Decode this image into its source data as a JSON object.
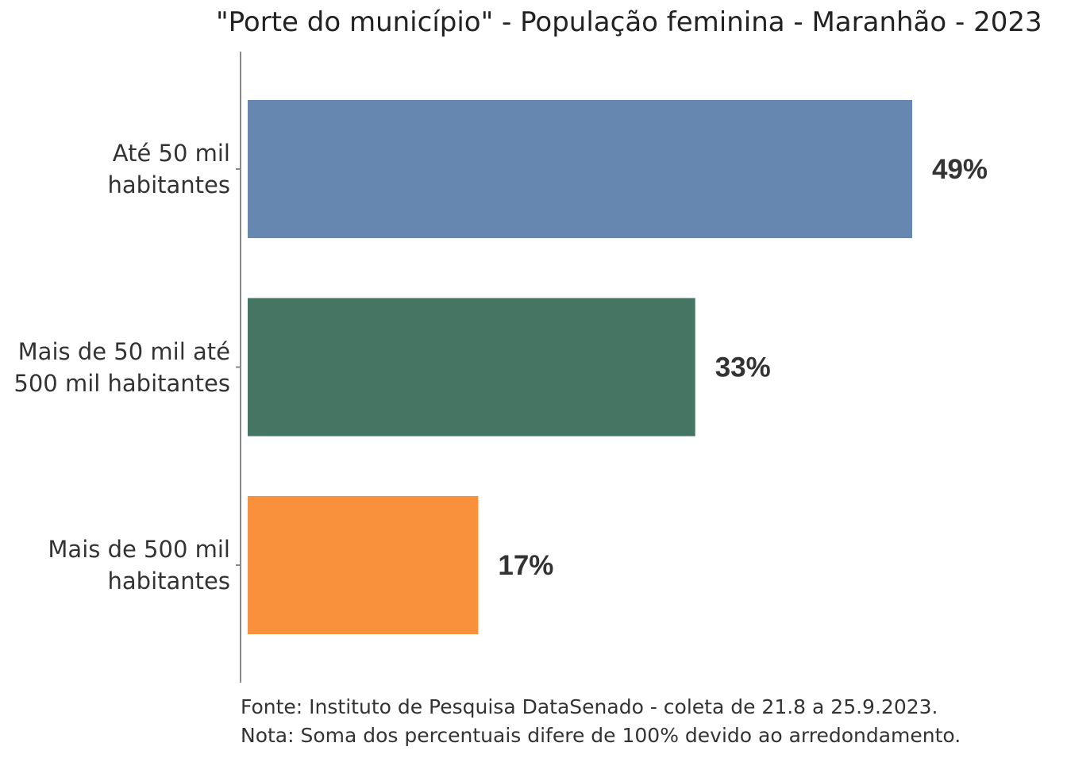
{
  "chart_data": {
    "type": "bar",
    "orientation": "horizontal",
    "title": "\"Porte do município\" - População feminina - Maranhão - 2023",
    "categories": [
      "Até 50 mil habitantes",
      "Mais de 50 mil até 500 mil habitantes",
      "Mais de 500 mil habitantes"
    ],
    "category_lines": [
      [
        "Até 50 mil",
        "habitantes"
      ],
      [
        "Mais de 50 mil até",
        "500 mil habitantes"
      ],
      [
        "Mais de 500 mil",
        "habitantes"
      ]
    ],
    "values": [
      49,
      33,
      17
    ],
    "value_labels": [
      "49%",
      "33%",
      "17%"
    ],
    "colors": [
      "#6688B0",
      "#457563",
      "#F9913C"
    ],
    "xlim": [
      0,
      55
    ],
    "grid": false,
    "legend": "none"
  },
  "footer": {
    "source": "Fonte: Instituto de Pesquisa DataSenado - coleta de 21.8 a 25.9.2023.",
    "note": "Nota: Soma dos percentuais difere de 100% devido ao arredondamento."
  }
}
